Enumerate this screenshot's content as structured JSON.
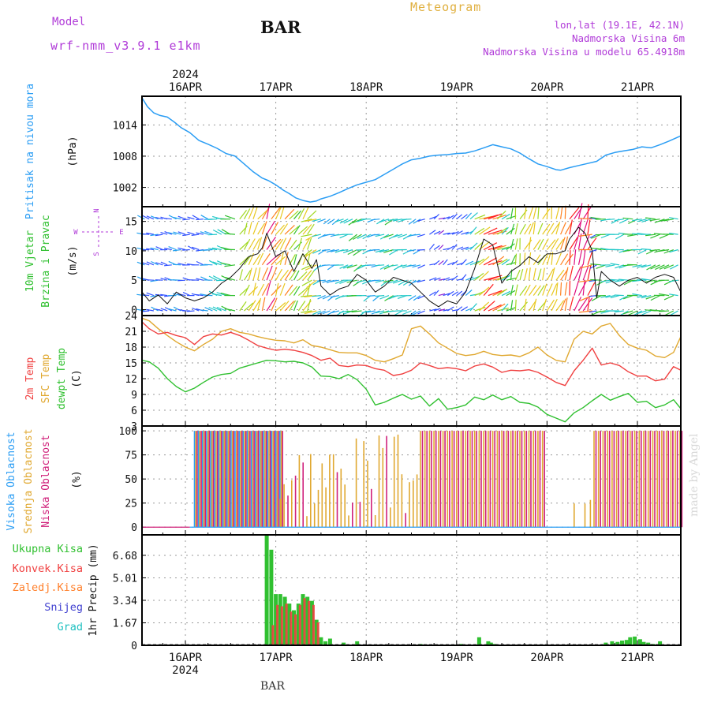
{
  "header": {
    "model_label": "Model",
    "model_value": "wrf-nmm_v3.9.1 e1km",
    "station": "BAR",
    "title": "Meteogram",
    "lonlat": "lon,lat (19.1E, 42.1N)",
    "elevation": "Nadmorska Visina 6m",
    "model_elevation": "Nadmorska Visina u modelu 65.4918m"
  },
  "credit": "made by Angel",
  "footer": "BAR",
  "colors": {
    "pressure": "#2a9df4",
    "temp": "#f04040",
    "sfc": "#e0a830",
    "dew": "#30c030",
    "high_cloud": "#2a9df4",
    "mid_cloud": "#e0a830",
    "low_cloud": "#d0207a",
    "precip": "#30c030",
    "conv": "#f04040",
    "frozen": "#ff7f2a",
    "snow": "#4040d0",
    "hail": "#20c0c0"
  },
  "chart_data": [
    {
      "type": "line",
      "title": "",
      "ylabel_left": "Pritisak na nivou mora",
      "ylabel_units": "(hPa)",
      "top_year": "2024",
      "x_ticks": [
        "16APR",
        "17APR",
        "18APR",
        "19APR",
        "20APR",
        "21APR"
      ],
      "x_range": [
        15.52,
        21.48
      ],
      "ylim": [
        998.3,
        1019.5
      ],
      "yticks": [
        "1002",
        "1008",
        "1014"
      ],
      "ytick_values": [
        1002,
        1008,
        1014
      ],
      "series": [
        {
          "name": "",
          "x": [
            15.52,
            15.58,
            15.65,
            15.72,
            15.8,
            15.88,
            15.95,
            16.05,
            16.15,
            16.25,
            16.35,
            16.45,
            16.55,
            16.65,
            16.75,
            16.85,
            16.92,
            17.0,
            17.08,
            17.15,
            17.22,
            17.3,
            17.38,
            17.45,
            17.5,
            17.6,
            17.7,
            17.8,
            17.9,
            18.0,
            18.1,
            18.2,
            18.3,
            18.4,
            18.5,
            18.6,
            18.7,
            18.8,
            18.9,
            19.0,
            19.1,
            19.2,
            19.3,
            19.4,
            19.5,
            19.6,
            19.7,
            19.8,
            19.9,
            20.0,
            20.1,
            20.15,
            20.25,
            20.35,
            20.45,
            20.55,
            20.65,
            20.75,
            20.85,
            20.95,
            21.05,
            21.15,
            21.25,
            21.35,
            21.48
          ],
          "values": [
            1019.2,
            1017.5,
            1016.3,
            1015.8,
            1015.5,
            1014.5,
            1013.5,
            1012.5,
            1011.0,
            1010.3,
            1009.5,
            1008.5,
            1008.0,
            1006.5,
            1005.0,
            1003.8,
            1003.3,
            1002.5,
            1001.5,
            1000.8,
            1000.0,
            999.5,
            999.2,
            999.4,
            999.8,
            1000.3,
            1001.0,
            1001.8,
            1002.5,
            1003.0,
            1003.5,
            1004.5,
            1005.5,
            1006.5,
            1007.3,
            1007.6,
            1008.0,
            1008.2,
            1008.3,
            1008.5,
            1008.6,
            1009.0,
            1009.6,
            1010.2,
            1009.8,
            1009.4,
            1008.6,
            1007.5,
            1006.5,
            1006.0,
            1005.4,
            1005.3,
            1005.8,
            1006.2,
            1006.6,
            1007.0,
            1008.2,
            1008.7,
            1009.0,
            1009.3,
            1009.8,
            1009.6,
            1010.2,
            1010.9,
            1011.9
          ]
        }
      ]
    },
    {
      "type": "line",
      "title": "",
      "ylabel_left": [
        "10m Vjetar",
        "Brzina i Pravac"
      ],
      "ylabel_units": "(m/s)",
      "compass": {
        "north": "N",
        "south": "S",
        "west": "W",
        "east": "E"
      },
      "ylim": [
        -1,
        17.5
      ],
      "yticks": [
        "0",
        "5",
        "10",
        "15"
      ],
      "ytick_values": [
        0,
        5,
        10,
        15
      ],
      "series": [
        {
          "name": "",
          "x": [
            15.52,
            15.6,
            15.7,
            15.8,
            15.9,
            16.0,
            16.1,
            16.2,
            16.3,
            16.4,
            16.5,
            16.6,
            16.7,
            16.8,
            16.85,
            16.9,
            17.0,
            17.1,
            17.2,
            17.3,
            17.4,
            17.45,
            17.5,
            17.6,
            17.7,
            17.8,
            17.9,
            18.0,
            18.1,
            18.2,
            18.3,
            18.4,
            18.5,
            18.6,
            18.7,
            18.8,
            18.9,
            19.0,
            19.1,
            19.2,
            19.3,
            19.4,
            19.5,
            19.6,
            19.7,
            19.8,
            19.9,
            20.0,
            20.1,
            20.2,
            20.25,
            20.35,
            20.42,
            20.5,
            20.55,
            20.6,
            20.7,
            20.8,
            20.9,
            21.0,
            21.1,
            21.2,
            21.3,
            21.4,
            21.48
          ],
          "values": [
            3.0,
            1.5,
            2.5,
            1.0,
            3.0,
            2.0,
            1.5,
            2.0,
            3.0,
            4.5,
            5.5,
            7.0,
            9.0,
            9.5,
            10.5,
            13.0,
            9.0,
            10.0,
            6.5,
            9.5,
            7.0,
            8.5,
            4.0,
            2.5,
            3.5,
            4.0,
            6.0,
            5.0,
            3.0,
            4.0,
            5.5,
            5.0,
            4.5,
            3.0,
            1.5,
            0.5,
            1.5,
            1.0,
            3.0,
            7.0,
            12.0,
            11.0,
            4.5,
            6.5,
            7.5,
            9.0,
            8.0,
            9.5,
            9.5,
            10.0,
            12.0,
            14.0,
            13.0,
            10.0,
            2.0,
            6.5,
            5.0,
            4.0,
            5.0,
            5.5,
            4.5,
            5.5,
            6.0,
            5.5,
            3.0
          ]
        }
      ]
    },
    {
      "type": "line",
      "title": "",
      "ylabel_left": [
        "2m Temp",
        "SFC Temp",
        "dewpt Temp"
      ],
      "ylabel_units": "(C)",
      "ylim": [
        3,
        24
      ],
      "yticks": [
        "3",
        "6",
        "9",
        "12",
        "15",
        "18",
        "21",
        "24"
      ],
      "ytick_values": [
        3,
        6,
        9,
        12,
        15,
        18,
        21,
        24
      ],
      "series": [
        {
          "name": "2m Temp",
          "x": [
            15.52,
            15.6,
            15.7,
            15.8,
            15.9,
            16.0,
            16.1,
            16.2,
            16.3,
            16.4,
            16.5,
            16.6,
            16.7,
            16.8,
            16.9,
            17.0,
            17.1,
            17.2,
            17.3,
            17.4,
            17.5,
            17.6,
            17.7,
            17.8,
            17.9,
            18.0,
            18.1,
            18.2,
            18.3,
            18.4,
            18.5,
            18.6,
            18.7,
            18.8,
            18.9,
            19.0,
            19.1,
            19.2,
            19.3,
            19.4,
            19.5,
            19.6,
            19.7,
            19.8,
            19.9,
            20.0,
            20.1,
            20.2,
            20.3,
            20.4,
            20.5,
            20.6,
            20.7,
            20.8,
            20.9,
            21.0,
            21.1,
            21.2,
            21.3,
            21.4,
            21.48
          ],
          "values": [
            22.8,
            21.5,
            20.5,
            20.8,
            20.2,
            19.8,
            18.5,
            20.0,
            20.5,
            20.3,
            20.8,
            20.2,
            19.3,
            18.3,
            17.8,
            17.4,
            17.6,
            17.4,
            17.0,
            16.4,
            15.5,
            15.9,
            14.5,
            14.3,
            14.6,
            14.5,
            13.9,
            13.6,
            12.6,
            12.9,
            13.6,
            15.0,
            14.5,
            13.9,
            14.1,
            13.9,
            13.5,
            14.4,
            14.8,
            14.2,
            13.2,
            13.6,
            13.5,
            13.7,
            13.2,
            12.3,
            11.3,
            10.7,
            13.5,
            15.5,
            17.8,
            14.6,
            15.0,
            14.5,
            13.3,
            12.5,
            12.5,
            11.6,
            11.9,
            14.3,
            13.6
          ]
        },
        {
          "name": "SFC Temp",
          "x": [
            15.52,
            15.6,
            15.7,
            15.8,
            15.9,
            16.0,
            16.1,
            16.2,
            16.3,
            16.4,
            16.5,
            16.6,
            16.7,
            16.8,
            16.9,
            17.0,
            17.1,
            17.2,
            17.3,
            17.4,
            17.5,
            17.6,
            17.7,
            17.8,
            17.9,
            18.0,
            18.1,
            18.2,
            18.3,
            18.4,
            18.5,
            18.6,
            18.7,
            18.8,
            18.9,
            19.0,
            19.1,
            19.2,
            19.3,
            19.4,
            19.5,
            19.6,
            19.7,
            19.8,
            19.9,
            20.0,
            20.1,
            20.2,
            20.3,
            20.4,
            20.5,
            20.6,
            20.7,
            20.8,
            20.9,
            21.0,
            21.1,
            21.2,
            21.3,
            21.4,
            21.48
          ],
          "values": [
            23.5,
            23.0,
            21.5,
            20.2,
            19.0,
            18.0,
            17.3,
            18.5,
            19.5,
            21.0,
            21.5,
            20.8,
            20.5,
            20.0,
            19.6,
            19.3,
            19.2,
            18.8,
            19.4,
            18.3,
            18.0,
            17.5,
            17.0,
            16.9,
            16.9,
            16.4,
            15.5,
            15.2,
            15.8,
            16.5,
            21.5,
            22.0,
            20.5,
            18.8,
            17.8,
            16.8,
            16.4,
            16.6,
            17.2,
            16.6,
            16.4,
            16.5,
            16.2,
            16.9,
            18.0,
            16.5,
            15.5,
            15.2,
            19.5,
            21.0,
            20.5,
            22.0,
            22.5,
            20.2,
            18.5,
            17.8,
            17.4,
            16.3,
            16.0,
            17.0,
            20.0
          ]
        },
        {
          "name": "dewpt Temp",
          "x": [
            15.52,
            15.6,
            15.7,
            15.8,
            15.9,
            16.0,
            16.1,
            16.2,
            16.3,
            16.4,
            16.5,
            16.6,
            16.7,
            16.8,
            16.9,
            17.0,
            17.1,
            17.2,
            17.3,
            17.4,
            17.5,
            17.6,
            17.7,
            17.8,
            17.9,
            18.0,
            18.1,
            18.2,
            18.3,
            18.4,
            18.5,
            18.6,
            18.7,
            18.8,
            18.9,
            19.0,
            19.1,
            19.2,
            19.3,
            19.4,
            19.5,
            19.6,
            19.7,
            19.8,
            19.9,
            20.0,
            20.1,
            20.2,
            20.3,
            20.4,
            20.5,
            20.6,
            20.7,
            20.8,
            20.9,
            21.0,
            21.1,
            21.2,
            21.3,
            21.4,
            21.48
          ],
          "values": [
            15.5,
            15.2,
            14.0,
            12.0,
            10.5,
            9.5,
            10.2,
            11.3,
            12.3,
            12.8,
            13.0,
            14.0,
            14.5,
            15.0,
            15.5,
            15.4,
            15.2,
            15.3,
            15.0,
            14.2,
            12.5,
            12.4,
            12.0,
            12.8,
            11.8,
            10.0,
            7.0,
            7.5,
            8.3,
            9.0,
            8.1,
            8.7,
            6.8,
            8.2,
            6.2,
            6.5,
            7.0,
            8.5,
            8.0,
            8.9,
            8.0,
            8.6,
            7.5,
            7.3,
            6.6,
            5.2,
            4.5,
            3.8,
            5.5,
            6.5,
            7.8,
            9.0,
            7.9,
            8.6,
            9.2,
            7.5,
            7.7,
            6.5,
            7.0,
            8.0,
            6.3
          ]
        }
      ]
    },
    {
      "type": "bar",
      "title": "",
      "ylabel_left": [
        "Visoka Oblacnost",
        "Srednja Oblacnost",
        "Niska Oblacnost"
      ],
      "ylabel_units": "(%)",
      "ylim": [
        -8,
        105
      ],
      "yticks": [
        "0",
        "25",
        "50",
        "75",
        "100"
      ],
      "ytick_values": [
        0,
        25,
        50,
        75,
        100
      ]
    },
    {
      "type": "bar",
      "title": "",
      "ylabel_left": [
        "Ukupna Kisa",
        "Konvek.Kisa",
        "Zaledj.Kisa",
        "Snijeg",
        "Grad"
      ],
      "ylabel_units": "1hr Precip (mm)",
      "ylim": [
        0,
        8.2
      ],
      "yticks": [
        "0",
        "1.67",
        "3.34",
        "5.01",
        "6.68"
      ],
      "ytick_values": [
        0,
        1.67,
        3.34,
        5.01,
        6.68
      ],
      "bottom_year": "2024",
      "series": [
        {
          "name": "Ukupna Kisa",
          "x": [
            16.9,
            16.95,
            17.0,
            17.05,
            17.1,
            17.15,
            17.2,
            17.25,
            17.3,
            17.35,
            17.4,
            17.45,
            17.5,
            17.55,
            17.6,
            17.7,
            17.75,
            17.85,
            17.9,
            18.05,
            18.2,
            18.6,
            19.05,
            19.25,
            19.35,
            19.38,
            19.42,
            19.5,
            20.1,
            20.5,
            20.65,
            20.72,
            20.78,
            20.83,
            20.88,
            20.92,
            20.97,
            21.03,
            21.07,
            21.12,
            21.17,
            21.25
          ],
          "values": [
            8.2,
            7.1,
            3.8,
            3.8,
            3.6,
            3.1,
            2.6,
            3.1,
            3.8,
            3.6,
            3.3,
            1.9,
            0.6,
            0.3,
            0.5,
            0.05,
            0.2,
            0.05,
            0.3,
            0.05,
            0.05,
            0.1,
            0.1,
            0.6,
            0.3,
            0.2,
            0.1,
            0.05,
            0.05,
            0.05,
            0.2,
            0.3,
            0.25,
            0.35,
            0.4,
            0.6,
            0.65,
            0.45,
            0.25,
            0.2,
            0.1,
            0.3
          ]
        },
        {
          "name": "Konvek.Kisa",
          "x": [
            16.95,
            17.0,
            17.05,
            17.1,
            17.15,
            17.2,
            17.25,
            17.3,
            17.35,
            17.4,
            17.45
          ],
          "values": [
            1.5,
            3.0,
            2.9,
            3.1,
            2.5,
            2.3,
            3.0,
            3.5,
            3.3,
            3.0,
            1.7
          ]
        }
      ]
    }
  ]
}
